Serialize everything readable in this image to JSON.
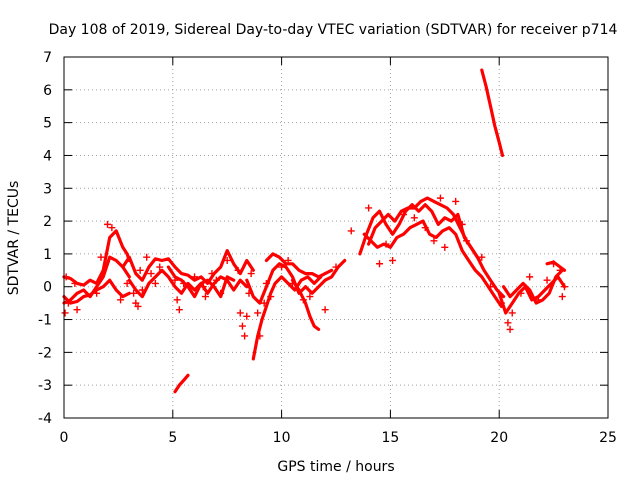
{
  "chart_data": {
    "type": "scatter",
    "title": "Day 108 of 2019, Sidereal Day-to-day VTEC variation (SDTVAR) for receiver p714",
    "xlabel": "GPS time / hours",
    "ylabel": "SDTVAR / TECUs",
    "xlim": [
      0,
      25
    ],
    "ylim": [
      -4,
      7
    ],
    "xticks": [
      "0",
      "5",
      "10",
      "15",
      "20",
      "25"
    ],
    "yticks": [
      "-4",
      "-3",
      "-2",
      "-1",
      "0",
      "1",
      "2",
      "3",
      "4",
      "5",
      "6",
      "7"
    ],
    "grid": true,
    "marker": "+",
    "color": "#ff0000",
    "series": [
      {
        "name": "scattered",
        "points": [
          [
            0.05,
            -0.8
          ],
          [
            0.1,
            0.3
          ],
          [
            0.2,
            -0.5
          ],
          [
            0.5,
            0.1
          ],
          [
            0.6,
            -0.7
          ],
          [
            1.5,
            -0.2
          ],
          [
            1.7,
            0.9
          ],
          [
            2.0,
            1.9
          ],
          [
            2.2,
            1.8
          ],
          [
            2.6,
            -0.4
          ],
          [
            2.9,
            0.1
          ],
          [
            3.2,
            -0.2
          ],
          [
            3.3,
            -0.5
          ],
          [
            3.4,
            -0.6
          ],
          [
            3.5,
            0.5
          ],
          [
            3.6,
            -0.1
          ],
          [
            3.8,
            0.9
          ],
          [
            4.0,
            0.4
          ],
          [
            4.2,
            0.1
          ],
          [
            4.4,
            0.6
          ],
          [
            5.1,
            0.2
          ],
          [
            5.2,
            -0.4
          ],
          [
            5.3,
            -0.7
          ],
          [
            5.5,
            0.1
          ],
          [
            6.0,
            0.3
          ],
          [
            6.4,
            0.0
          ],
          [
            6.5,
            -0.3
          ],
          [
            6.8,
            0.4
          ],
          [
            7.0,
            0.2
          ],
          [
            7.2,
            -0.2
          ],
          [
            7.5,
            0.8
          ],
          [
            8.0,
            0.5
          ],
          [
            8.1,
            -0.8
          ],
          [
            8.2,
            -1.2
          ],
          [
            8.3,
            -1.5
          ],
          [
            8.4,
            -0.9
          ],
          [
            8.5,
            -0.2
          ],
          [
            8.6,
            0.4
          ],
          [
            8.9,
            -0.8
          ],
          [
            9.0,
            -1.5
          ],
          [
            9.2,
            -0.5
          ],
          [
            9.3,
            0.1
          ],
          [
            9.5,
            -0.3
          ],
          [
            10.0,
            0.6
          ],
          [
            10.3,
            0.8
          ],
          [
            10.5,
            0.1
          ],
          [
            11.0,
            -0.4
          ],
          [
            11.3,
            -0.3
          ],
          [
            12.0,
            -0.7
          ],
          [
            12.5,
            0.6
          ],
          [
            13.2,
            1.7
          ],
          [
            14.0,
            2.4
          ],
          [
            14.5,
            0.7
          ],
          [
            14.8,
            1.3
          ],
          [
            15.1,
            0.8
          ],
          [
            15.6,
            2.2
          ],
          [
            16.1,
            2.1
          ],
          [
            16.6,
            1.8
          ],
          [
            17.0,
            1.4
          ],
          [
            17.3,
            2.7
          ],
          [
            17.5,
            1.2
          ],
          [
            18.0,
            2.6
          ],
          [
            18.3,
            1.9
          ],
          [
            18.5,
            1.4
          ],
          [
            19.2,
            0.9
          ],
          [
            19.6,
            0.0
          ],
          [
            20.1,
            -0.5
          ],
          [
            20.4,
            -1.1
          ],
          [
            20.5,
            -1.3
          ],
          [
            20.6,
            -0.8
          ],
          [
            21.0,
            -0.2
          ],
          [
            21.4,
            0.3
          ],
          [
            21.8,
            -0.4
          ],
          [
            22.2,
            0.2
          ],
          [
            22.5,
            0.7
          ],
          [
            22.8,
            0.5
          ],
          [
            22.9,
            -0.3
          ],
          [
            23.0,
            0.0
          ]
        ]
      }
    ],
    "tracks": [
      [
        [
          0.0,
          0.3
        ],
        [
          0.3,
          0.25
        ],
        [
          0.6,
          0.1
        ],
        [
          0.9,
          0.05
        ],
        [
          1.2,
          0.2
        ],
        [
          1.5,
          0.1
        ],
        [
          1.8,
          0.5
        ],
        [
          2.1,
          1.5
        ],
        [
          2.4,
          1.7
        ],
        [
          2.7,
          1.2
        ],
        [
          2.9,
          1.0
        ],
        [
          3.0,
          0.8
        ]
      ],
      [
        [
          0.0,
          -0.5
        ],
        [
          0.3,
          -0.4
        ],
        [
          0.6,
          -0.2
        ],
        [
          0.9,
          -0.1
        ],
        [
          1.2,
          -0.3
        ],
        [
          1.5,
          0.0
        ],
        [
          1.8,
          0.3
        ],
        [
          2.1,
          0.9
        ],
        [
          2.4,
          0.8
        ],
        [
          2.7,
          0.6
        ],
        [
          3.0,
          0.3
        ]
      ],
      [
        [
          0.0,
          -0.3
        ],
        [
          0.3,
          -0.5
        ],
        [
          0.6,
          -0.45
        ],
        [
          0.9,
          -0.3
        ],
        [
          1.2,
          -0.25
        ],
        [
          1.5,
          -0.1
        ],
        [
          1.8,
          0.0
        ],
        [
          2.1,
          0.2
        ],
        [
          2.4,
          -0.1
        ],
        [
          2.7,
          -0.3
        ],
        [
          3.0,
          -0.2
        ]
      ],
      [
        [
          2.7,
          0.6
        ],
        [
          3.0,
          0.9
        ],
        [
          3.3,
          0.4
        ],
        [
          3.6,
          0.2
        ],
        [
          3.9,
          0.6
        ],
        [
          4.2,
          0.85
        ],
        [
          4.5,
          0.8
        ],
        [
          4.8,
          0.85
        ],
        [
          5.1,
          0.6
        ],
        [
          5.4,
          0.4
        ],
        [
          5.7,
          0.35
        ],
        [
          6.0,
          0.2
        ],
        [
          6.3,
          0.3
        ],
        [
          6.6,
          0.1
        ],
        [
          6.9,
          0.4
        ],
        [
          7.2,
          0.6
        ],
        [
          7.5,
          1.1
        ],
        [
          7.8,
          0.7
        ],
        [
          8.1,
          0.4
        ],
        [
          8.4,
          0.8
        ],
        [
          8.7,
          0.5
        ]
      ],
      [
        [
          3.0,
          0.2
        ],
        [
          3.3,
          -0.1
        ],
        [
          3.6,
          -0.3
        ],
        [
          3.9,
          0.1
        ],
        [
          4.2,
          0.3
        ],
        [
          4.5,
          0.5
        ],
        [
          4.8,
          0.3
        ],
        [
          5.1,
          0.0
        ],
        [
          5.4,
          -0.2
        ],
        [
          5.7,
          0.1
        ],
        [
          6.0,
          -0.1
        ],
        [
          6.3,
          0.1
        ],
        [
          6.6,
          -0.2
        ],
        [
          6.9,
          0.1
        ],
        [
          7.2,
          0.3
        ],
        [
          7.5,
          0.2
        ],
        [
          7.8,
          -0.1
        ],
        [
          8.1,
          0.2
        ],
        [
          8.4,
          0.0
        ]
      ],
      [
        [
          4.8,
          0.6
        ],
        [
          5.1,
          0.3
        ],
        [
          5.4,
          0.2
        ],
        [
          5.7,
          0.0
        ],
        [
          6.0,
          -0.3
        ],
        [
          6.3,
          0.1
        ],
        [
          6.6,
          0.2
        ],
        [
          6.9,
          0.0
        ],
        [
          7.2,
          -0.3
        ],
        [
          7.5,
          0.3
        ],
        [
          7.8,
          0.2
        ]
      ],
      [
        [
          5.1,
          -3.2
        ],
        [
          5.3,
          -3.0
        ],
        [
          5.5,
          -2.85
        ],
        [
          5.7,
          -2.7
        ]
      ],
      [
        [
          8.4,
          0.2
        ],
        [
          8.7,
          -0.3
        ],
        [
          9.0,
          -0.5
        ],
        [
          9.3,
          0.0
        ],
        [
          9.6,
          0.5
        ],
        [
          9.9,
          0.7
        ],
        [
          10.2,
          0.6
        ],
        [
          10.5,
          0.3
        ],
        [
          10.8,
          -0.2
        ],
        [
          11.1,
          0.0
        ],
        [
          11.4,
          -0.2
        ],
        [
          11.7,
          0.0
        ],
        [
          12.0,
          0.2
        ],
        [
          12.3,
          0.3
        ],
        [
          12.6,
          0.6
        ],
        [
          12.9,
          0.8
        ]
      ],
      [
        [
          8.7,
          -2.2
        ],
        [
          8.9,
          -1.5
        ],
        [
          9.1,
          -1.0
        ],
        [
          9.3,
          -0.6
        ],
        [
          9.5,
          -0.2
        ],
        [
          9.7,
          0.1
        ],
        [
          10.0,
          0.3
        ],
        [
          10.3,
          0.1
        ],
        [
          10.6,
          -0.1
        ],
        [
          10.9,
          0.2
        ],
        [
          11.2,
          0.3
        ],
        [
          11.5,
          0.1
        ],
        [
          11.8,
          0.3
        ]
      ],
      [
        [
          9.3,
          0.8
        ],
        [
          9.6,
          1.0
        ],
        [
          9.9,
          0.9
        ],
        [
          10.2,
          0.7
        ],
        [
          10.5,
          0.7
        ],
        [
          10.8,
          0.5
        ],
        [
          11.1,
          0.4
        ],
        [
          11.4,
          0.4
        ],
        [
          11.7,
          0.3
        ],
        [
          12.0,
          0.4
        ],
        [
          12.3,
          0.5
        ]
      ],
      [
        [
          10.5,
          0.2
        ],
        [
          10.8,
          -0.1
        ],
        [
          11.1,
          -0.5
        ],
        [
          11.3,
          -0.9
        ],
        [
          11.5,
          -1.2
        ],
        [
          11.7,
          -1.3
        ]
      ],
      [
        [
          13.6,
          1.0
        ],
        [
          13.9,
          1.6
        ],
        [
          14.2,
          2.1
        ],
        [
          14.5,
          2.3
        ],
        [
          14.8,
          1.9
        ],
        [
          15.1,
          1.6
        ],
        [
          15.4,
          1.9
        ],
        [
          15.7,
          2.3
        ],
        [
          16.0,
          2.5
        ],
        [
          16.3,
          2.3
        ],
        [
          16.6,
          2.5
        ],
        [
          16.9,
          2.3
        ],
        [
          17.2,
          1.9
        ],
        [
          17.5,
          2.1
        ],
        [
          17.8,
          2.0
        ],
        [
          18.1,
          2.2
        ],
        [
          18.4,
          1.5
        ],
        [
          18.7,
          1.2
        ],
        [
          19.0,
          0.9
        ],
        [
          19.3,
          0.5
        ],
        [
          19.6,
          0.2
        ],
        [
          19.9,
          -0.1
        ],
        [
          20.2,
          -0.3
        ]
      ],
      [
        [
          13.8,
          1.6
        ],
        [
          14.1,
          1.4
        ],
        [
          14.4,
          1.2
        ],
        [
          14.7,
          1.3
        ],
        [
          15.0,
          1.2
        ],
        [
          15.3,
          1.5
        ],
        [
          15.6,
          1.6
        ],
        [
          15.9,
          1.8
        ],
        [
          16.2,
          1.9
        ],
        [
          16.5,
          2.0
        ],
        [
          16.8,
          1.6
        ],
        [
          17.1,
          1.5
        ],
        [
          17.4,
          1.7
        ],
        [
          17.7,
          1.8
        ],
        [
          18.0,
          1.6
        ],
        [
          18.3,
          1.1
        ],
        [
          18.6,
          0.8
        ],
        [
          18.9,
          0.5
        ],
        [
          19.2,
          0.3
        ],
        [
          19.5,
          0.0
        ],
        [
          19.8,
          -0.3
        ],
        [
          20.1,
          -0.6
        ]
      ],
      [
        [
          14.0,
          1.3
        ],
        [
          14.3,
          1.8
        ],
        [
          14.6,
          2.0
        ],
        [
          14.9,
          2.2
        ],
        [
          15.2,
          2.0
        ],
        [
          15.5,
          2.3
        ],
        [
          15.8,
          2.4
        ],
        [
          16.1,
          2.4
        ],
        [
          16.4,
          2.6
        ],
        [
          16.7,
          2.7
        ],
        [
          17.0,
          2.6
        ],
        [
          17.3,
          2.5
        ],
        [
          17.6,
          2.4
        ],
        [
          17.9,
          2.2
        ],
        [
          18.2,
          1.8
        ],
        [
          18.5,
          1.4
        ],
        [
          18.8,
          1.1
        ],
        [
          19.1,
          0.8
        ]
      ],
      [
        [
          20.0,
          -0.2
        ],
        [
          20.3,
          -0.8
        ],
        [
          20.6,
          -0.5
        ],
        [
          20.9,
          -0.2
        ],
        [
          21.2,
          0.0
        ],
        [
          21.5,
          -0.4
        ],
        [
          21.8,
          -0.3
        ],
        [
          22.1,
          -0.1
        ],
        [
          22.4,
          0.1
        ],
        [
          22.7,
          0.3
        ],
        [
          23.0,
          0.0
        ]
      ],
      [
        [
          20.2,
          0.0
        ],
        [
          20.5,
          -0.3
        ],
        [
          20.8,
          -0.1
        ],
        [
          21.1,
          0.1
        ],
        [
          21.4,
          -0.1
        ],
        [
          21.7,
          -0.5
        ],
        [
          22.0,
          -0.4
        ],
        [
          22.3,
          -0.2
        ],
        [
          22.6,
          0.3
        ],
        [
          22.9,
          0.5
        ]
      ],
      [
        [
          22.2,
          0.7
        ],
        [
          22.5,
          0.75
        ],
        [
          22.8,
          0.6
        ],
        [
          23.0,
          0.5
        ]
      ],
      [
        [
          19.2,
          6.6
        ],
        [
          19.4,
          6.1
        ],
        [
          19.6,
          5.5
        ],
        [
          19.8,
          4.9
        ],
        [
          20.0,
          4.4
        ],
        [
          20.15,
          4.0
        ]
      ]
    ]
  }
}
